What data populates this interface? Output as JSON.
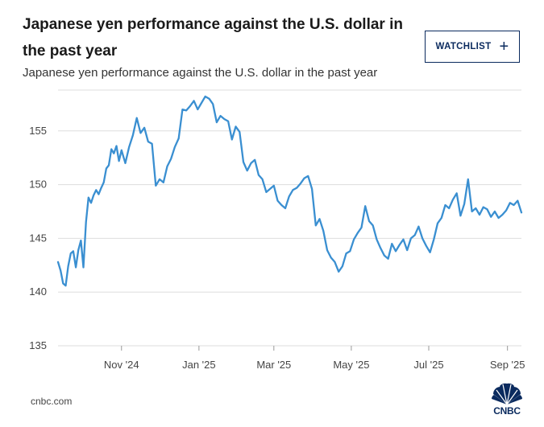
{
  "header": {
    "title": "Japanese yen performance against the U.S. dollar in the past year",
    "subtitle": "Japanese yen performance against the U.S. dollar in the past year",
    "watchlist_label": "WATCHLIST"
  },
  "footer": {
    "source": "cnbc.com",
    "logo_text": "CNBC"
  },
  "colors": {
    "line": "#3a8fd1",
    "grid": "#dddddd",
    "brand": "#0a2a5e"
  },
  "icons": {
    "watchlist_icon": "plus-icon",
    "logo_icon": "peacock-icon"
  },
  "chart_data": {
    "type": "line",
    "title": "",
    "xlabel": "",
    "ylabel": "",
    "ylim": [
      135,
      158.8
    ],
    "yticks": [
      135,
      140,
      145,
      150,
      155
    ],
    "xlim": [
      "2024-09-12",
      "2025-09-12"
    ],
    "xticks": [
      {
        "label": "Nov '24",
        "date": "2024-11-01"
      },
      {
        "label": "Jan '25",
        "date": "2025-01-01"
      },
      {
        "label": "Mar '25",
        "date": "2025-03-01"
      },
      {
        "label": "May '25",
        "date": "2025-05-01"
      },
      {
        "label": "Jul '25",
        "date": "2025-07-01"
      },
      {
        "label": "Sep '25",
        "date": "2025-09-01"
      }
    ],
    "grid": true,
    "series": [
      {
        "name": "",
        "x": [
          "2024-09-12",
          "2024-09-14",
          "2024-09-16",
          "2024-09-18",
          "2024-09-20",
          "2024-09-22",
          "2024-09-24",
          "2024-09-26",
          "2024-09-28",
          "2024-09-30",
          "2024-10-02",
          "2024-10-04",
          "2024-10-06",
          "2024-10-08",
          "2024-10-10",
          "2024-10-12",
          "2024-10-14",
          "2024-10-16",
          "2024-10-18",
          "2024-10-20",
          "2024-10-22",
          "2024-10-24",
          "2024-10-26",
          "2024-10-28",
          "2024-10-30",
          "2024-11-01",
          "2024-11-04",
          "2024-11-07",
          "2024-11-10",
          "2024-11-13",
          "2024-11-16",
          "2024-11-19",
          "2024-11-22",
          "2024-11-25",
          "2024-11-28",
          "2024-12-01",
          "2024-12-04",
          "2024-12-07",
          "2024-12-10",
          "2024-12-13",
          "2024-12-16",
          "2024-12-19",
          "2024-12-22",
          "2024-12-25",
          "2024-12-28",
          "2024-12-31",
          "2025-01-03",
          "2025-01-06",
          "2025-01-09",
          "2025-01-12",
          "2025-01-15",
          "2025-01-18",
          "2025-01-21",
          "2025-01-24",
          "2025-01-27",
          "2025-01-30",
          "2025-02-02",
          "2025-02-05",
          "2025-02-08",
          "2025-02-11",
          "2025-02-14",
          "2025-02-17",
          "2025-02-20",
          "2025-02-23",
          "2025-02-26",
          "2025-03-01",
          "2025-03-04",
          "2025-03-07",
          "2025-03-10",
          "2025-03-13",
          "2025-03-16",
          "2025-03-19",
          "2025-03-22",
          "2025-03-25",
          "2025-03-28",
          "2025-03-31",
          "2025-04-03",
          "2025-04-06",
          "2025-04-09",
          "2025-04-12",
          "2025-04-15",
          "2025-04-18",
          "2025-04-21",
          "2025-04-24",
          "2025-04-27",
          "2025-04-30",
          "2025-05-03",
          "2025-05-06",
          "2025-05-09",
          "2025-05-12",
          "2025-05-15",
          "2025-05-18",
          "2025-05-21",
          "2025-05-24",
          "2025-05-27",
          "2025-05-30",
          "2025-06-02",
          "2025-06-05",
          "2025-06-08",
          "2025-06-11",
          "2025-06-14",
          "2025-06-17",
          "2025-06-20",
          "2025-06-23",
          "2025-06-26",
          "2025-06-29",
          "2025-07-02",
          "2025-07-05",
          "2025-07-08",
          "2025-07-11",
          "2025-07-14",
          "2025-07-17",
          "2025-07-20",
          "2025-07-23",
          "2025-07-26",
          "2025-07-29",
          "2025-08-01",
          "2025-08-04",
          "2025-08-07",
          "2025-08-10",
          "2025-08-13",
          "2025-08-16",
          "2025-08-19",
          "2025-08-22",
          "2025-08-25",
          "2025-08-28",
          "2025-08-31",
          "2025-09-03",
          "2025-09-06",
          "2025-09-09",
          "2025-09-12"
        ],
        "values": [
          142.8,
          142.0,
          140.8,
          140.6,
          142.4,
          143.6,
          143.8,
          142.3,
          143.9,
          144.8,
          142.3,
          146.5,
          148.8,
          148.3,
          149.0,
          149.5,
          149.1,
          149.7,
          150.2,
          151.5,
          151.8,
          153.3,
          152.9,
          153.6,
          152.2,
          153.2,
          152.0,
          153.5,
          154.6,
          156.2,
          154.8,
          155.3,
          154.0,
          153.8,
          149.9,
          150.5,
          150.2,
          151.7,
          152.4,
          153.5,
          154.3,
          157.0,
          156.9,
          157.3,
          157.8,
          157.0,
          157.6,
          158.2,
          158.0,
          157.5,
          155.8,
          156.4,
          156.1,
          155.9,
          154.2,
          155.4,
          154.9,
          152.1,
          151.3,
          152.0,
          152.3,
          150.9,
          150.5,
          149.3,
          149.6,
          149.9,
          148.5,
          148.1,
          147.8,
          148.9,
          149.5,
          149.7,
          150.1,
          150.6,
          150.8,
          149.6,
          146.2,
          146.8,
          145.7,
          143.9,
          143.2,
          142.8,
          141.9,
          142.4,
          143.6,
          143.8,
          144.9,
          145.5,
          146.0,
          148.0,
          146.6,
          146.2,
          144.9,
          144.1,
          143.4,
          143.1,
          144.5,
          143.8,
          144.4,
          144.9,
          143.9,
          145.0,
          145.3,
          146.1,
          145.0,
          144.3,
          143.7,
          144.9,
          146.4,
          146.9,
          148.1,
          147.8,
          148.6,
          149.2,
          147.1,
          148.2,
          150.5,
          147.5,
          147.8,
          147.2,
          147.9,
          147.7,
          147.0,
          147.5,
          146.9,
          147.2,
          147.6,
          148.3,
          148.1,
          148.5,
          147.4
        ]
      }
    ]
  }
}
